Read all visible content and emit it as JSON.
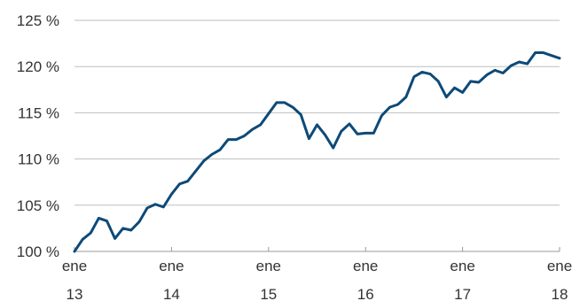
{
  "chart_data": {
    "type": "line",
    "title": "",
    "xlabel": "",
    "ylabel": "",
    "y_tick_suffix": " %",
    "ylim": [
      100,
      125
    ],
    "y_ticks": [
      100,
      105,
      110,
      115,
      120,
      125
    ],
    "xlim": [
      0,
      60
    ],
    "x_ticks": [
      {
        "x": 0,
        "month": "ene",
        "year": "13"
      },
      {
        "x": 12,
        "month": "ene",
        "year": "14"
      },
      {
        "x": 24,
        "month": "ene",
        "year": "15"
      },
      {
        "x": 36,
        "month": "ene",
        "year": "16"
      },
      {
        "x": 48,
        "month": "ene",
        "year": "17"
      },
      {
        "x": 60,
        "month": "ene",
        "year": "18"
      }
    ],
    "grid": true,
    "legend": "none",
    "colors": {
      "line": "#0d4a78",
      "grid": "#bfbfbf"
    },
    "series": [
      {
        "values": [
          100.0,
          101.3,
          102.0,
          103.6,
          103.3,
          101.4,
          102.5,
          102.3,
          103.2,
          104.7,
          105.1,
          104.8,
          106.2,
          107.3,
          107.6,
          108.7,
          109.8,
          110.5,
          111.0,
          112.1,
          112.1,
          112.5,
          113.2,
          113.7,
          114.9,
          116.1,
          116.1,
          115.6,
          114.8,
          112.2,
          113.7,
          112.6,
          111.2,
          113.0,
          113.8,
          112.7,
          112.8,
          112.8,
          114.7,
          115.6,
          115.9,
          116.7,
          118.9,
          119.4,
          119.2,
          118.4,
          116.7,
          117.7,
          117.2,
          118.4,
          118.3,
          119.1,
          119.6,
          119.3,
          120.1,
          120.5,
          120.3,
          121.5,
          121.5,
          121.2,
          120.9
        ]
      }
    ]
  }
}
